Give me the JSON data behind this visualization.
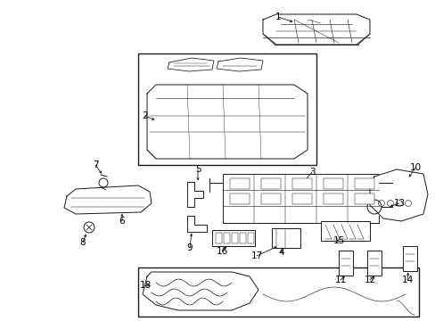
{
  "background_color": "#ffffff",
  "line_color": "#1a1a1a",
  "figure_width": 4.89,
  "figure_height": 3.6,
  "dpi": 100,
  "label_fontsize": 7.5,
  "lw": 0.7
}
